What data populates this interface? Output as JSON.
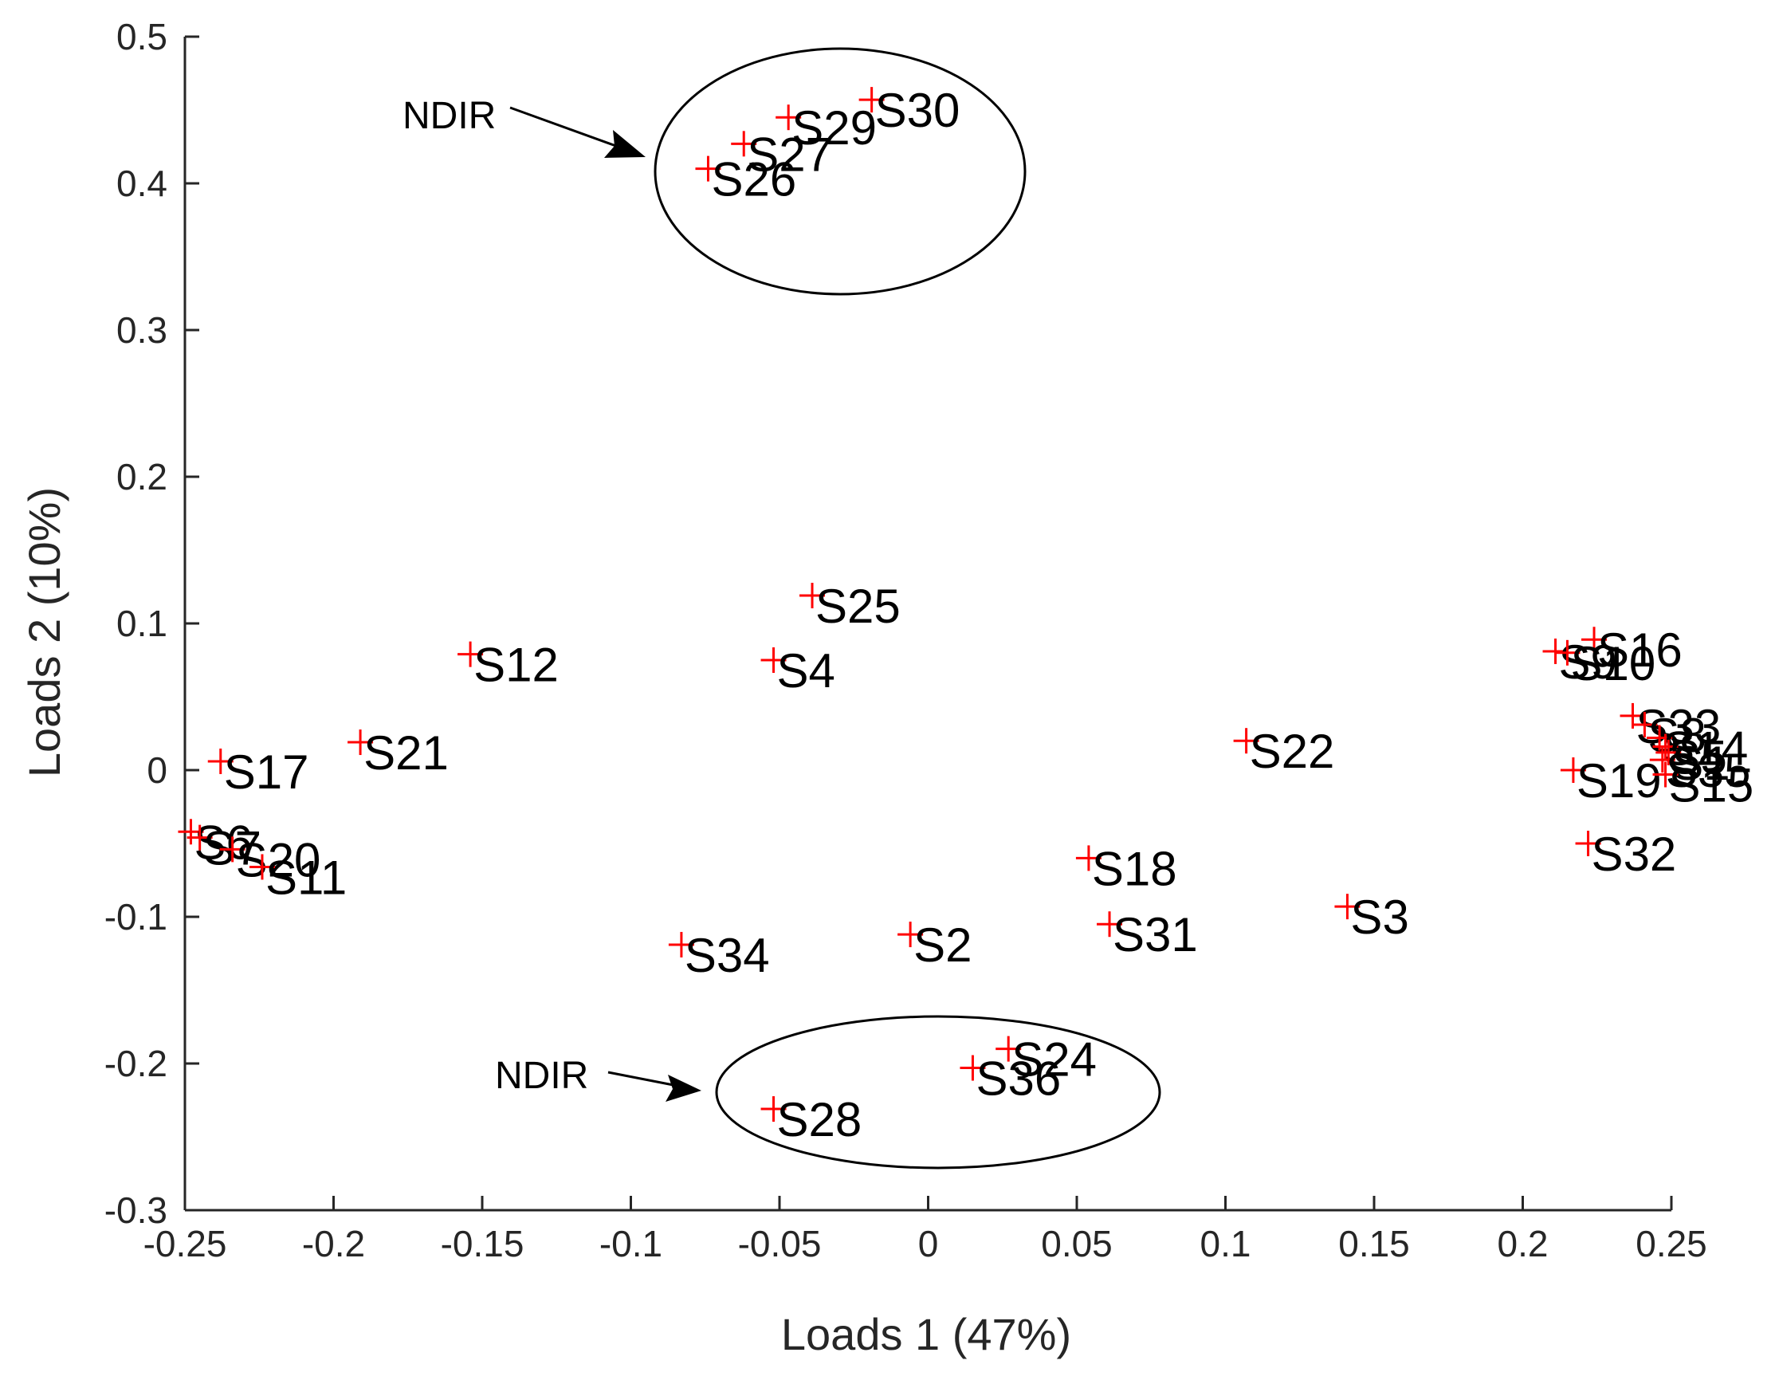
{
  "chart_data": {
    "type": "scatter",
    "title": "",
    "xlabel": "Loads 1 (47%)",
    "ylabel": "Loads 2 (10%)",
    "xlim": [
      -0.25,
      0.25
    ],
    "ylim": [
      -0.3,
      0.5
    ],
    "xticks": [
      -0.25,
      -0.2,
      -0.15,
      -0.1,
      -0.05,
      0,
      0.05,
      0.1,
      0.15,
      0.2,
      0.25
    ],
    "xtick_labels": [
      "-0.25",
      "-0.2",
      "-0.15",
      "-0.1",
      "-0.05",
      "0",
      "0.05",
      "0.1",
      "0.15",
      "0.2",
      "0.25"
    ],
    "yticks": [
      -0.3,
      -0.2,
      -0.1,
      0,
      0.1,
      0.2,
      0.3,
      0.4,
      0.5
    ],
    "ytick_labels": [
      "-0.3",
      "-0.2",
      "-0.1",
      "0",
      "0.1",
      "0.2",
      "0.3",
      "0.4",
      "0.5"
    ],
    "grid": false,
    "marker": "+",
    "marker_color": "#ff0000",
    "points": [
      {
        "label": "S30",
        "x": -0.019,
        "y": 0.457
      },
      {
        "label": "S29",
        "x": -0.047,
        "y": 0.445
      },
      {
        "label": "S27",
        "x": -0.062,
        "y": 0.427
      },
      {
        "label": "S26",
        "x": -0.074,
        "y": 0.41
      },
      {
        "label": "S25",
        "x": -0.039,
        "y": 0.119
      },
      {
        "label": "S4",
        "x": -0.052,
        "y": 0.075
      },
      {
        "label": "S12",
        "x": -0.154,
        "y": 0.079
      },
      {
        "label": "S21",
        "x": -0.191,
        "y": 0.019
      },
      {
        "label": "S17",
        "x": -0.238,
        "y": 0.006
      },
      {
        "label": "S6",
        "x": -0.248,
        "y": -0.042
      },
      {
        "label": "S7",
        "x": -0.245,
        "y": -0.046
      },
      {
        "label": "S20",
        "x": -0.234,
        "y": -0.054
      },
      {
        "label": "S11",
        "x": -0.224,
        "y": -0.066
      },
      {
        "label": "S34",
        "x": -0.083,
        "y": -0.119
      },
      {
        "label": "S2",
        "x": -0.006,
        "y": -0.112
      },
      {
        "label": "S18",
        "x": 0.054,
        "y": -0.06
      },
      {
        "label": "S31",
        "x": 0.061,
        "y": -0.105
      },
      {
        "label": "S22",
        "x": 0.107,
        "y": 0.02
      },
      {
        "label": "S3",
        "x": 0.141,
        "y": -0.093
      },
      {
        "label": "S24",
        "x": 0.027,
        "y": -0.19
      },
      {
        "label": "S36",
        "x": 0.015,
        "y": -0.203
      },
      {
        "label": "S28",
        "x": -0.052,
        "y": -0.231
      },
      {
        "label": "S16",
        "x": 0.224,
        "y": 0.089
      },
      {
        "label": "S9",
        "x": 0.211,
        "y": 0.081
      },
      {
        "label": "S10",
        "x": 0.215,
        "y": 0.08
      },
      {
        "label": "S33",
        "x": 0.237,
        "y": 0.037
      },
      {
        "label": "S8",
        "x": 0.241,
        "y": 0.031
      },
      {
        "label": "S14",
        "x": 0.246,
        "y": 0.022
      },
      {
        "label": "S5",
        "x": 0.248,
        "y": 0.016
      },
      {
        "label": "S1",
        "x": 0.249,
        "y": 0.012
      },
      {
        "label": "S35",
        "x": 0.247,
        "y": 0.007
      },
      {
        "label": "S19",
        "x": 0.217,
        "y": 0.0
      },
      {
        "label": "S15",
        "x": 0.248,
        "y": -0.003
      },
      {
        "label": "S32",
        "x": 0.222,
        "y": -0.05
      }
    ],
    "annotations": [
      {
        "text": "NDIR",
        "points_to_group": [
          "S26",
          "S27",
          "S29",
          "S30"
        ],
        "shape": "ellipse"
      },
      {
        "text": "NDIR",
        "points_to_group": [
          "S24",
          "S28",
          "S36"
        ],
        "shape": "ellipse"
      }
    ]
  }
}
